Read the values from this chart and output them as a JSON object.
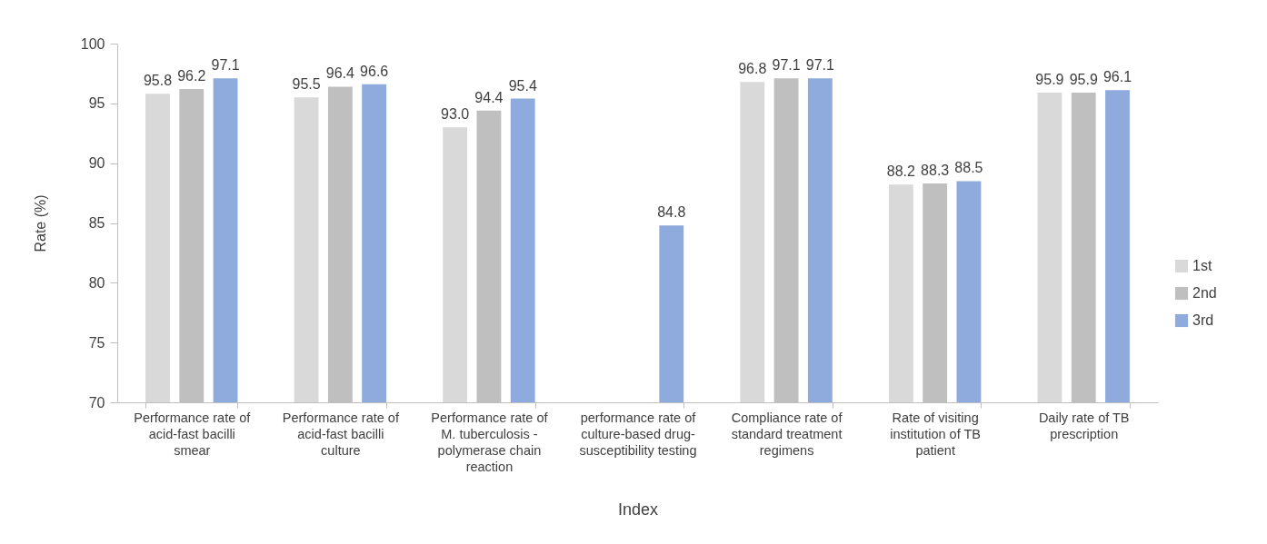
{
  "chart_data": {
    "type": "bar",
    "xlabel": "Index",
    "ylabel": "Rate (%)",
    "categories": [
      "Performance rate of acid-fast bacilli smear",
      "Performance rate of acid-fast bacilli culture",
      "Performance rate of M. tuberculosis - polymerase chain reaction",
      "performance rate of culture-based drug-susceptibility testing",
      "Compliance rate of standard treatment regimens",
      "Rate of visiting institution of TB patient",
      "Daily rate of TB prescription"
    ],
    "series": [
      {
        "name": "1st",
        "color": "#d9d9d9",
        "values": [
          95.8,
          95.5,
          93.0,
          null,
          96.8,
          88.2,
          95.9
        ],
        "value_labels": [
          "95.8",
          "95.5",
          "93.0",
          null,
          "96.8",
          "88.2",
          "95.9"
        ]
      },
      {
        "name": "2nd",
        "color": "#bfbfbf",
        "values": [
          96.2,
          96.4,
          94.4,
          null,
          97.1,
          88.3,
          95.9
        ],
        "value_labels": [
          "96.2",
          "96.4",
          "94.4",
          null,
          "97.1",
          "88.3",
          "95.9"
        ]
      },
      {
        "name": "3rd",
        "color": "#8faadc",
        "values": [
          97.1,
          96.6,
          95.4,
          84.8,
          97.1,
          88.5,
          96.1
        ],
        "value_labels": [
          "97.1",
          "96.6",
          "95.4",
          "84.8",
          "97.1",
          "88.5",
          "96.1"
        ]
      }
    ],
    "ylim": [
      70,
      100
    ],
    "yticks": [
      70,
      75,
      80,
      85,
      90,
      95,
      100
    ],
    "legend": "right",
    "grid": false
  }
}
